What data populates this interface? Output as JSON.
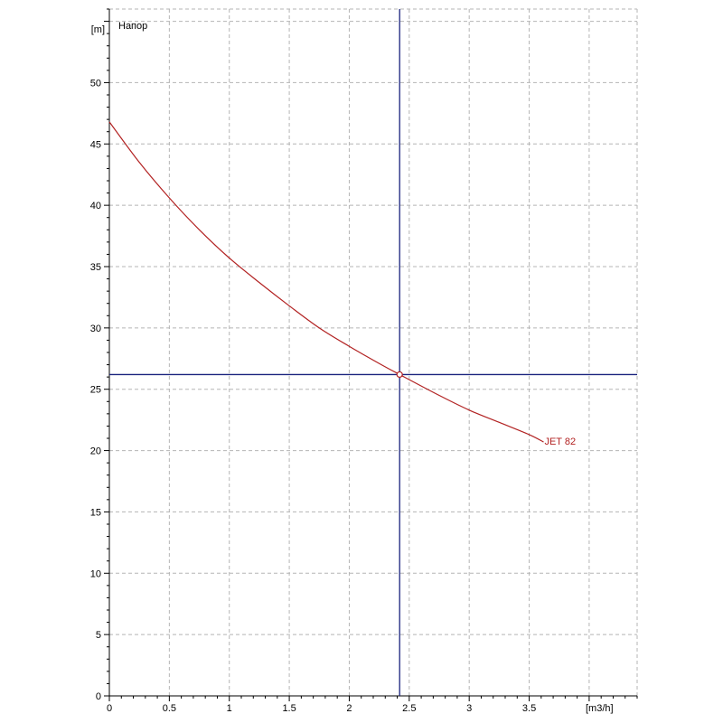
{
  "chart_data": {
    "type": "line",
    "title": "Напор",
    "xlabel": "[m3/h]",
    "ylabel": "[m]",
    "xlim": [
      0,
      4.4
    ],
    "ylim": [
      0,
      56
    ],
    "x_ticks": [
      0,
      0.5,
      1,
      1.5,
      2,
      2.5,
      3,
      3.5
    ],
    "y_ticks": [
      0,
      5,
      10,
      15,
      20,
      25,
      30,
      35,
      40,
      45,
      50
    ],
    "x_tick_labels": [
      "0",
      "0.5",
      "1",
      "1.5",
      "2",
      "2.5",
      "3",
      "3.5"
    ],
    "y_tick_labels": [
      "0",
      "5",
      "10",
      "15",
      "20",
      "25",
      "30",
      "35",
      "40",
      "45",
      "50"
    ],
    "grid": true,
    "series": [
      {
        "name": "JET 82",
        "color": "#b22222",
        "x": [
          0,
          0.25,
          0.5,
          0.75,
          1.0,
          1.25,
          1.5,
          1.75,
          2.0,
          2.25,
          2.42,
          2.75,
          3.0,
          3.25,
          3.5,
          3.62
        ],
        "y": [
          46.8,
          43.5,
          40.6,
          38.0,
          35.7,
          33.7,
          31.8,
          30.0,
          28.5,
          27.1,
          26.2,
          24.5,
          23.3,
          22.3,
          21.3,
          20.7
        ]
      }
    ],
    "crosshair": {
      "x": 2.42,
      "y": 26.2,
      "color": "#1a237e"
    }
  }
}
